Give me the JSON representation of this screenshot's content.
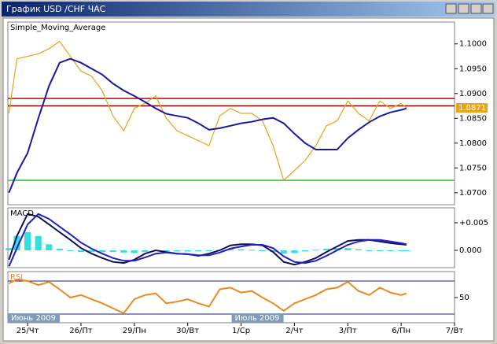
{
  "window_title": "График USD /CHF ЧАС",
  "chart_data": [
    {
      "type": "line",
      "label": "Simple_Moving_Average",
      "x": [
        -0.35,
        -0.2,
        0,
        0.2,
        0.4,
        0.6,
        0.8,
        1.0,
        1.2,
        1.4,
        1.6,
        1.8,
        2.0,
        2.2,
        2.4,
        2.6,
        2.8,
        3.0,
        3.2,
        3.4,
        3.6,
        3.8,
        4.0,
        4.2,
        4.4,
        4.6,
        4.8,
        5.0,
        5.2,
        5.4,
        5.6,
        5.8,
        6.0,
        6.2,
        6.4,
        6.6,
        6.8,
        7.0,
        7.1
      ],
      "series": [
        {
          "color": "#e8a317",
          "values": [
            1.086,
            1.097,
            1.0975,
            1.098,
            1.099,
            1.1005,
            1.0975,
            1.0945,
            1.0935,
            1.0905,
            1.0855,
            1.0825,
            1.087,
            1.088,
            1.0895,
            1.085,
            1.0825,
            1.0815,
            1.0805,
            1.0795,
            1.0855,
            1.087,
            1.086,
            1.086,
            1.0845,
            1.0795,
            1.0725,
            1.0745,
            1.0765,
            1.0795,
            1.0835,
            1.0845,
            1.0885,
            1.086,
            1.0845,
            1.0885,
            1.087,
            1.088,
            1.0871
          ]
        },
        {
          "color": "#1a1aa0",
          "values": [
            1.07,
            1.074,
            1.078,
            1.085,
            1.0915,
            1.0962,
            1.097,
            1.0962,
            1.095,
            1.0938,
            1.092,
            1.0906,
            1.0895,
            1.0883,
            1.087,
            1.0859,
            1.0855,
            1.0851,
            1.084,
            1.0827,
            1.083,
            1.0835,
            1.084,
            1.0843,
            1.0848,
            1.0851,
            1.084,
            1.0819,
            1.08,
            1.0787,
            1.0787,
            1.0787,
            1.081,
            1.0827,
            1.0842,
            1.0854,
            1.0862,
            1.0867,
            1.087
          ]
        }
      ],
      "hlines": [
        {
          "value": 1.089,
          "color": "#cc0000"
        },
        {
          "value": 1.0875,
          "color": "#800000"
        },
        {
          "value": 1.0725,
          "color": "#22cc22"
        }
      ],
      "last_price": 1.0871,
      "ylim": [
        1.0676,
        1.1044
      ],
      "yticks": [
        {
          "value": 1.1,
          "label": "1.1000"
        },
        {
          "value": 1.095,
          "label": "1.0950"
        },
        {
          "value": 1.09,
          "label": "1.0900"
        },
        {
          "value": 1.085,
          "label": "1.0850"
        },
        {
          "value": 1.08,
          "label": "1.0800"
        },
        {
          "value": 1.075,
          "label": "1.0750"
        },
        {
          "value": 1.07,
          "label": "1.0700"
        }
      ],
      "xlim": [
        -0.37,
        8
      ]
    },
    {
      "type": "line",
      "label": "MACD",
      "x": [
        -0.35,
        -0.2,
        0,
        0.2,
        0.4,
        0.6,
        0.8,
        1.0,
        1.2,
        1.4,
        1.6,
        1.8,
        2.0,
        2.2,
        2.4,
        2.6,
        2.8,
        3.0,
        3.2,
        3.4,
        3.6,
        3.8,
        4.0,
        4.2,
        4.4,
        4.6,
        4.8,
        5.0,
        5.2,
        5.4,
        5.6,
        5.8,
        6.0,
        6.2,
        6.4,
        6.6,
        6.8,
        7.0,
        7.1
      ],
      "series": [
        {
          "color": "#33e0e0",
          "style": "histogram",
          "values": [
            0.0004,
            0.0026,
            0.0033,
            0.0026,
            0.0011,
            0.0003,
            -0.0001,
            -0.0003,
            -0.0003,
            -0.0003,
            -0.0003,
            -0.0004,
            -0.0005,
            -0.0003,
            -0.0001,
            -0.0001,
            -0.0002,
            -0.0002,
            -0.0002,
            -0.0001,
            0.0001,
            0.0002,
            0.0002,
            0.0001,
            0,
            -0.0003,
            -0.0006,
            -0.0005,
            -0.0002,
            0.0001,
            0.0003,
            0.0004,
            0.0004,
            0.0002,
            0,
            -0.0001,
            -0.0001,
            -0.0001,
            -0.0001
          ]
        },
        {
          "color": "#10105a",
          "values": [
            -0.0017,
            0.0026,
            0.0066,
            0.0061,
            0.0047,
            0.0033,
            0.0019,
            0.0004,
            -0.0006,
            -0.0014,
            -0.0021,
            -0.0023,
            -0.0017,
            -0.0006,
            0,
            -0.0003,
            -0.0006,
            -0.0007,
            -0.001,
            -0.0006,
            0,
            0.0009,
            0.0011,
            0.0011,
            0.0009,
            -0.0003,
            -0.0021,
            -0.0026,
            -0.0021,
            -0.0014,
            -0.0003,
            0.0007,
            0.0017,
            0.0019,
            0.0019,
            0.0016,
            0.0013,
            0.0011,
            0.001
          ]
        },
        {
          "color": "#2020c0",
          "values": [
            -0.0029,
            0.0004,
            0.0047,
            0.0066,
            0.0057,
            0.0043,
            0.0029,
            0.0014,
            0.0003,
            -0.0006,
            -0.0014,
            -0.0019,
            -0.0019,
            -0.0013,
            -0.0006,
            -0.0004,
            -0.0006,
            -0.0007,
            -0.0009,
            -0.0009,
            -0.0004,
            0.0003,
            0.0007,
            0.001,
            0.001,
            0.0004,
            -0.0011,
            -0.0021,
            -0.0023,
            -0.0019,
            -0.001,
            0,
            0.001,
            0.0016,
            0.0019,
            0.0019,
            0.0016,
            0.0013,
            0.0011
          ]
        }
      ],
      "ylim": [
        -0.00314,
        0.00771
      ],
      "yticks": [
        {
          "value": 0.005,
          "label": "+0.005"
        },
        {
          "value": 0,
          "label": "0.000"
        }
      ],
      "xlim": [
        -0.37,
        8
      ]
    },
    {
      "type": "line",
      "label": "RSI",
      "x": [
        -0.35,
        -0.2,
        0,
        0.2,
        0.4,
        0.6,
        0.8,
        1.0,
        1.2,
        1.4,
        1.6,
        1.8,
        2.0,
        2.2,
        2.4,
        2.6,
        2.8,
        3.0,
        3.2,
        3.4,
        3.6,
        3.8,
        4.0,
        4.2,
        4.4,
        4.6,
        4.8,
        5.0,
        5.2,
        5.4,
        5.6,
        5.8,
        6.0,
        6.2,
        6.4,
        6.6,
        6.8,
        7.0,
        7.1
      ],
      "series": [
        {
          "color": "#e88a20",
          "values": [
            67,
            72,
            70,
            65,
            69,
            60,
            50,
            53,
            48,
            43,
            37,
            31,
            48,
            53,
            55,
            43,
            45,
            48,
            43,
            39,
            60,
            62,
            56,
            58,
            50,
            43,
            34,
            43,
            48,
            53,
            60,
            62,
            69,
            58,
            53,
            62,
            56,
            53,
            55
          ]
        }
      ],
      "hlines": [
        {
          "value": 70,
          "color": "#202080"
        },
        {
          "value": 30,
          "color": "#202080"
        }
      ],
      "ylim": [
        19.5,
        81.4
      ],
      "yticks": [
        50
      ],
      "xlim": [
        -0.37,
        8
      ],
      "xticks": [
        {
          "value": 0,
          "label": "25/Чт"
        },
        {
          "value": 1,
          "label": "26/Пт"
        },
        {
          "value": 2,
          "label": "29/Пн"
        },
        {
          "value": 3,
          "label": "30/Вт"
        },
        {
          "value": 4,
          "label": "1/Ср"
        },
        {
          "value": 5,
          "label": "2/Чт"
        },
        {
          "value": 6,
          "label": "3/Пт"
        },
        {
          "value": 7,
          "label": "6/Пн"
        },
        {
          "value": 8,
          "label": "7/Вт"
        }
      ],
      "period_labels": [
        "Июнь 2009",
        "Июль 2009"
      ]
    }
  ]
}
